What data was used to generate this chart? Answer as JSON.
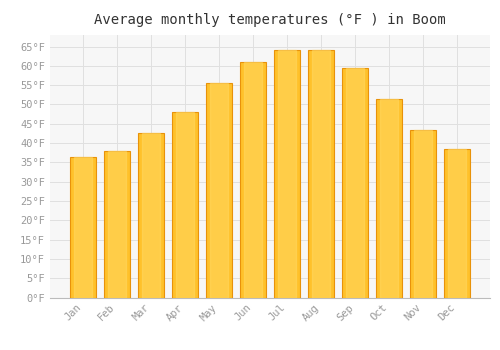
{
  "title": "Average monthly temperatures (°F ) in Boom",
  "months": [
    "Jan",
    "Feb",
    "Mar",
    "Apr",
    "May",
    "Jun",
    "Jul",
    "Aug",
    "Sep",
    "Oct",
    "Nov",
    "Dec"
  ],
  "values": [
    36.5,
    38.0,
    42.5,
    48.0,
    55.5,
    61.0,
    64.0,
    64.0,
    59.5,
    51.5,
    43.5,
    38.5
  ],
  "bar_color": "#FFC12A",
  "bar_edge_color": "#E8920A",
  "background_color": "#FFFFFF",
  "plot_bg_color": "#F7F7F7",
  "grid_color": "#E0E0E0",
  "ylim": [
    0,
    68
  ],
  "yticks": [
    0,
    5,
    10,
    15,
    20,
    25,
    30,
    35,
    40,
    45,
    50,
    55,
    60,
    65
  ],
  "title_fontsize": 10,
  "tick_fontsize": 7.5,
  "font_family": "monospace",
  "tick_color": "#999999",
  "title_color": "#333333"
}
